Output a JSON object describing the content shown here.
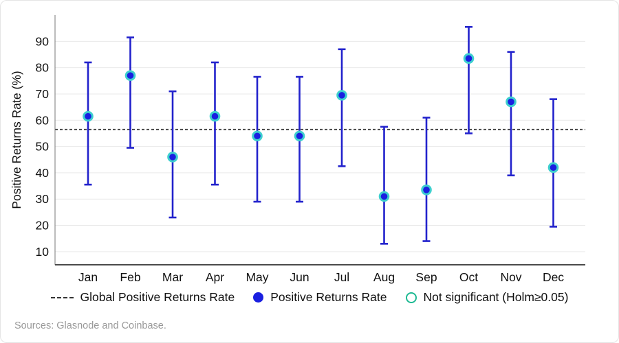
{
  "chart_data": {
    "type": "scatter",
    "subtype": "points-with-error-bars",
    "title": "",
    "xlabel": "",
    "ylabel": "Positive Returns Rate (%)",
    "categories": [
      "Jan",
      "Feb",
      "Mar",
      "Apr",
      "May",
      "Jun",
      "Jul",
      "Aug",
      "Sep",
      "Oct",
      "Nov",
      "Dec"
    ],
    "series": [
      {
        "name": "Positive Returns Rate",
        "values": [
          61.5,
          77,
          46,
          61.5,
          54,
          54,
          69.5,
          31,
          33.5,
          83.5,
          67,
          42
        ],
        "ci_low": [
          35.5,
          49.5,
          23,
          35.5,
          29,
          29,
          42.5,
          13,
          14,
          55,
          39,
          19.5
        ],
        "ci_high": [
          82,
          91.5,
          71,
          82,
          76.5,
          76.5,
          87,
          57.5,
          61,
          95.5,
          86,
          68
        ],
        "significant": [
          false,
          false,
          false,
          false,
          false,
          false,
          false,
          false,
          false,
          false,
          false,
          false
        ]
      }
    ],
    "global_rate": 56.5,
    "ylim": [
      5,
      100
    ],
    "yticks": [
      10,
      20,
      30,
      40,
      50,
      60,
      70,
      80,
      90
    ],
    "grid": true,
    "legend_position": "bottom"
  },
  "legend": {
    "items": [
      {
        "label": "Global Positive Returns Rate",
        "marker": "dashed-line"
      },
      {
        "label": "Positive Returns Rate",
        "marker": "filled-dot"
      },
      {
        "label": "Not significant (Holm≥0.05)",
        "marker": "open-circle"
      }
    ]
  },
  "footer": {
    "source": "Sources: Glasnode and Coinbase."
  },
  "colors": {
    "errorbar": "#2222cc",
    "marker_fill": "#1a1fe0",
    "marker_ring": "#3ecfcf",
    "not_significant": "#1db992",
    "global_line": "#333333",
    "grid": "#e9e9e9",
    "y_axis_line": "#777777",
    "x_axis_line": "#4a4a4a",
    "tick_text": "#111111",
    "source_text": "#999999"
  }
}
